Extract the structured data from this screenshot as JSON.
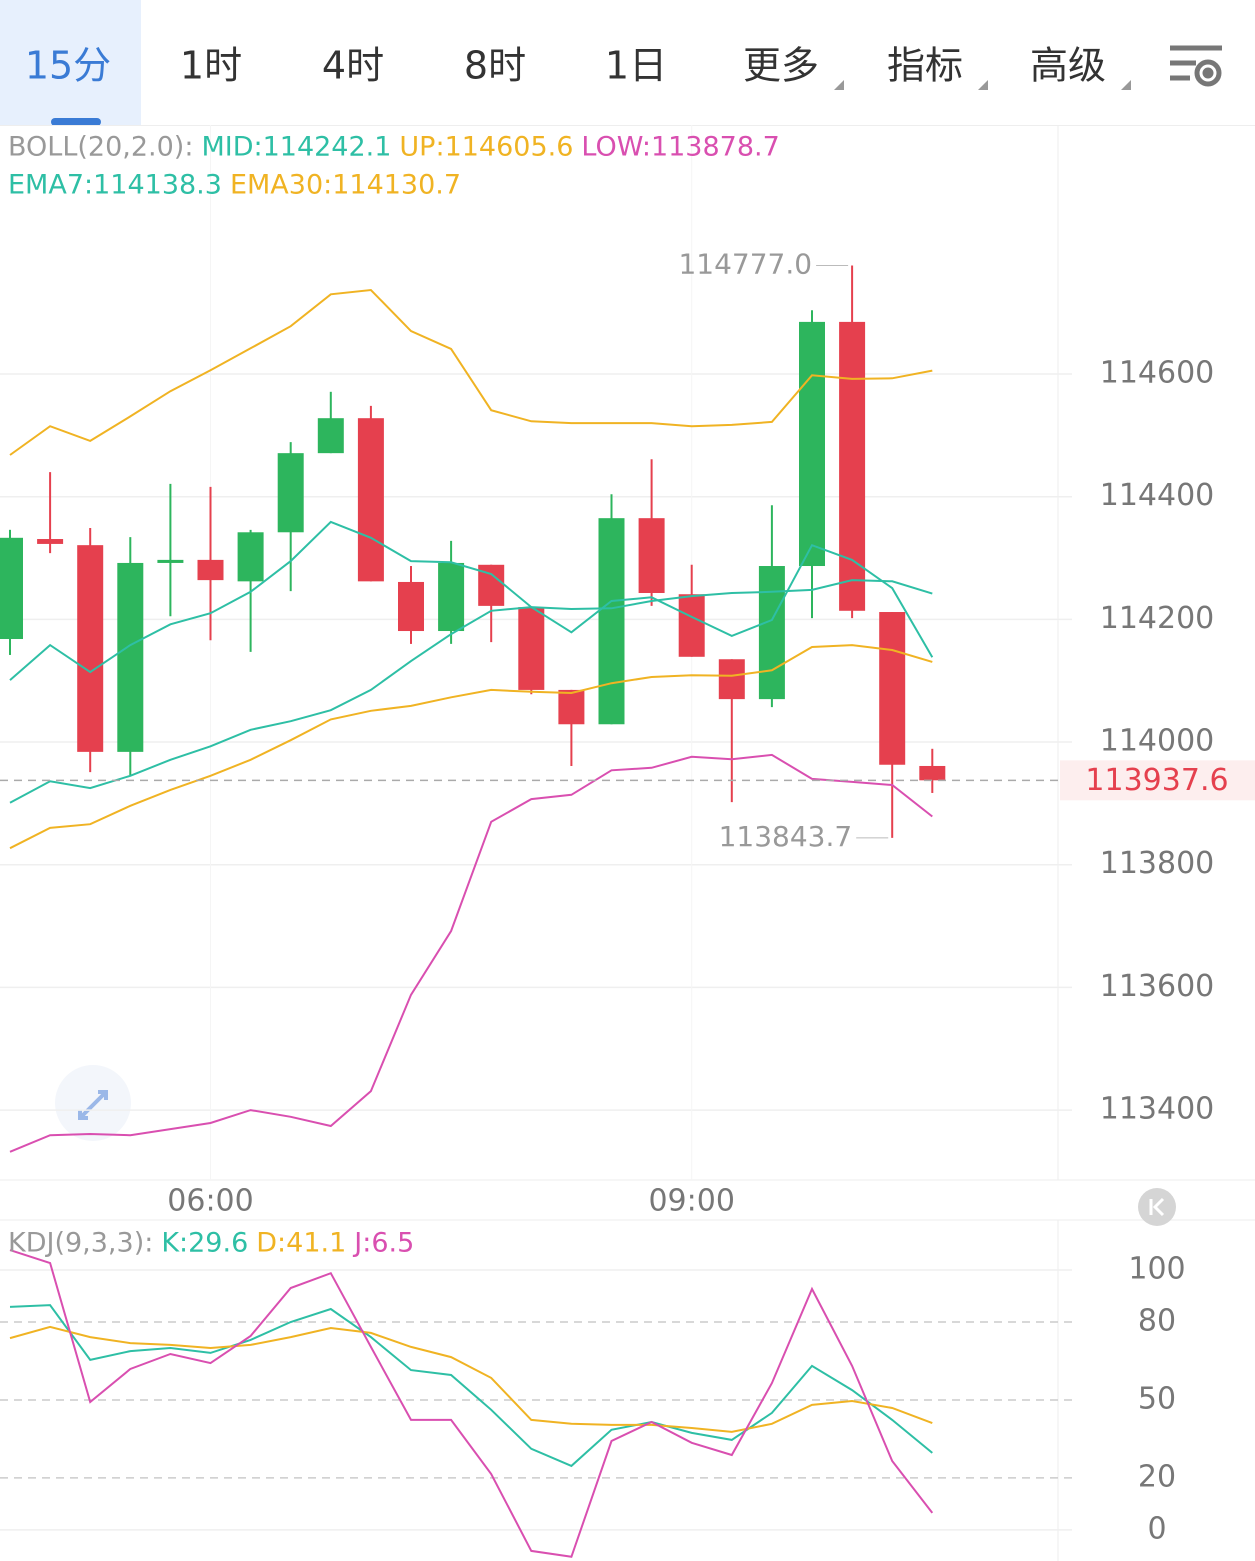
{
  "tabs": [
    "15分",
    "1时",
    "4时",
    "8时",
    "1日",
    "更多",
    "指标",
    "高级"
  ],
  "chart_data": [
    {
      "type": "candlestick",
      "legend_title": "BOLL(20,2.0):",
      "categories": [
        null,
        null,
        null,
        null,
        null,
        "06:00",
        null,
        null,
        null,
        null,
        null,
        null,
        null,
        null,
        null,
        null,
        null,
        "09:00",
        null,
        null,
        null,
        null,
        null,
        null
      ],
      "open": [
        114168,
        114331,
        114321,
        113984,
        114292,
        114297,
        114262,
        114342,
        114471,
        114528,
        114261,
        114181,
        114289,
        114220,
        114085,
        114029,
        114365,
        114241,
        114135,
        114070,
        114287,
        114685,
        114212,
        113961
      ],
      "high": [
        114346,
        114440,
        114349,
        114334,
        114421,
        114416,
        114346,
        114489,
        114571,
        114548,
        114287,
        114328,
        114289,
        114220,
        114085,
        114404,
        114461,
        114289,
        114135,
        114386,
        114704,
        114777,
        114212,
        113989
      ],
      "low": [
        114142,
        114308,
        113951,
        113946,
        114205,
        114166,
        114147,
        114246,
        114471,
        114262,
        114160,
        114160,
        114163,
        114078,
        113961,
        114029,
        114222,
        114139,
        113902,
        114057,
        114202,
        114202,
        113843.7,
        113917
      ],
      "close": [
        114333,
        114323,
        113984,
        114292,
        114297,
        114264,
        114342,
        114471,
        114528,
        114262,
        114181,
        114292,
        114222,
        114085,
        114029,
        114365,
        114243,
        114139,
        114070,
        114287,
        114685,
        114214,
        113963,
        113937.6
      ],
      "up_color": "#2db55d",
      "down_color": "#e5404e",
      "series": [
        {
          "name": "MID:114242.1",
          "color": "#2ebfa5",
          "values": [
            113901,
            113936,
            113925,
            113945,
            113971,
            113993,
            114020,
            114034,
            114052,
            114085,
            114132,
            114176,
            114214,
            114220,
            114217,
            114218,
            114230,
            114238,
            114243,
            114245,
            114248,
            114264,
            114262,
            114242.1
          ]
        },
        {
          "name": "UP:114605.6",
          "color": "#f0b323",
          "values": [
            114468,
            114515,
            114491,
            114531,
            114572,
            114606,
            114642,
            114678,
            114730,
            114737,
            114670,
            114641,
            114541,
            114523,
            114520,
            114520,
            114520,
            114515,
            114517,
            114522,
            114598,
            114592,
            114593,
            114605.6
          ]
        },
        {
          "name": "LOW:113878.7",
          "color": "#d94fb0",
          "values": [
            113332,
            113359,
            113361,
            113359,
            113369,
            113379,
            113400,
            113389,
            113374,
            113431,
            113588,
            113692,
            113870,
            113907,
            113914,
            113954,
            113958,
            113976,
            113972,
            113979,
            113940,
            113935,
            113930,
            113878.7
          ]
        },
        {
          "name": "EMA7:114138.3",
          "color": "#2ebfa5",
          "values": [
            114101,
            114158,
            114114,
            114158,
            114192,
            114210,
            114245,
            114295,
            114359,
            114333,
            114295,
            114293,
            114274,
            114220,
            114179,
            114230,
            114236,
            114204,
            114173,
            114199,
            114321,
            114297,
            114251,
            114138.3
          ]
        },
        {
          "name": "EMA30:114130.7",
          "color": "#f0b323",
          "values": [
            113827,
            113860,
            113866,
            113896,
            113922,
            113945,
            113971,
            114003,
            114037,
            114051,
            114059,
            114073,
            114085,
            114082,
            114080,
            114096,
            114106,
            114109,
            114108,
            114117,
            114155,
            114158,
            114150,
            114130.7
          ]
        }
      ],
      "ylim": [
        113286,
        115006
      ],
      "yticks": [
        113400,
        113600,
        113800,
        114000,
        114200,
        114400,
        114600
      ],
      "grid": true,
      "high_label": {
        "value": 114777,
        "label": "114777.0"
      },
      "low_label": 113843.7,
      "last_price": 113937.6
    },
    {
      "type": "line",
      "legend_title": "KDJ(9,3,3):",
      "series": [
        {
          "name": "K:29.6",
          "color": "#2ebfa5",
          "values": [
            85.8,
            86.5,
            65.4,
            68.8,
            70.0,
            68.1,
            73.1,
            80.0,
            85.0,
            74.2,
            61.5,
            59.6,
            46.2,
            31.2,
            24.6,
            38.5,
            41.5,
            37.3,
            34.6,
            45.0,
            63.1,
            53.8,
            42.3,
            29.6
          ]
        },
        {
          "name": "D:41.1",
          "color": "#f0b323",
          "values": [
            73.8,
            78.1,
            74.2,
            71.9,
            71.2,
            70.0,
            71.2,
            74.2,
            77.7,
            75.8,
            70.4,
            66.5,
            58.5,
            42.3,
            40.8,
            40.4,
            40.4,
            39.2,
            37.7,
            40.8,
            48.1,
            49.6,
            46.9,
            41.1
          ]
        },
        {
          "name": "J:6.5",
          "color": "#d94fb0",
          "values": [
            107.7,
            102.7,
            49.2,
            61.9,
            67.7,
            64.2,
            74.6,
            93.1,
            98.8,
            70.4,
            42.3,
            42.3,
            21.5,
            -8.1,
            -10.4,
            34.2,
            41.5,
            33.5,
            28.8,
            56.5,
            92.7,
            63.1,
            26.5,
            6.5
          ]
        }
      ],
      "ylim": [
        -12,
        118.5
      ],
      "yticks": [
        0,
        20,
        50,
        80,
        100
      ],
      "grid": true
    }
  ]
}
